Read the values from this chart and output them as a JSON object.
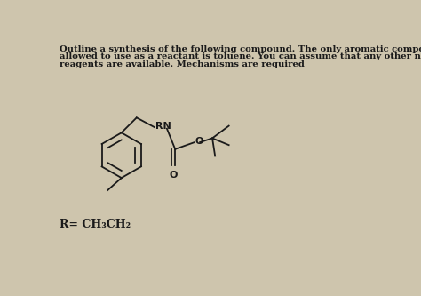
{
  "background_color": "#cec5ad",
  "text_color": "#1a1a1a",
  "header_line1": "Outline a synthesis of the following compound. The only aromatic compound you are",
  "header_line2": "allowed to use as a reactant is toluene. You can assume that any other nonaromatic",
  "header_line3": "reagents are available. Mechanisms are required",
  "footer_text": "R= CH₃CH₂",
  "font_size_header": 7.2,
  "font_size_label": 8.0,
  "font_size_footer": 9.0,
  "lw": 1.3
}
